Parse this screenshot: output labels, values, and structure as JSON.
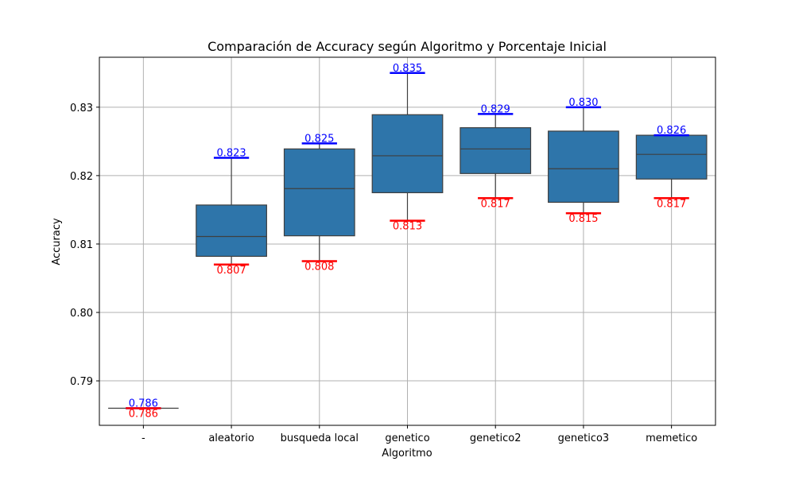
{
  "chart_data": {
    "type": "box",
    "title": "Comparación de Accuracy según Algoritmo y Porcentaje Inicial",
    "xlabel": "Algoritmo",
    "ylabel": "Accuracy",
    "ylim": [
      0.7835,
      0.8373
    ],
    "yticks": [
      0.79,
      0.8,
      0.81,
      0.82,
      0.83
    ],
    "ytick_labels": [
      "0.79",
      "0.80",
      "0.81",
      "0.82",
      "0.83"
    ],
    "grid": true,
    "box_color": "#2e75aa",
    "max_color": "#0000ff",
    "min_color": "#ff0000",
    "categories": [
      "-",
      "aleatorio",
      "busqueda local",
      "genetico",
      "genetico2",
      "genetico3",
      "memetico"
    ],
    "boxes": [
      {
        "whisker_low": 0.786,
        "q1": 0.786,
        "median": 0.786,
        "q3": 0.786,
        "whisker_high": 0.786,
        "min_label": "0.786",
        "max_label": "0.786"
      },
      {
        "whisker_low": 0.807,
        "q1": 0.8082,
        "median": 0.8111,
        "q3": 0.8157,
        "whisker_high": 0.8226,
        "min_label": "0.807",
        "max_label": "0.823"
      },
      {
        "whisker_low": 0.8075,
        "q1": 0.8112,
        "median": 0.8181,
        "q3": 0.8239,
        "whisker_high": 0.8247,
        "min_label": "0.808",
        "max_label": "0.825"
      },
      {
        "whisker_low": 0.8134,
        "q1": 0.8175,
        "median": 0.8229,
        "q3": 0.8289,
        "whisker_high": 0.835,
        "min_label": "0.813",
        "max_label": "0.835"
      },
      {
        "whisker_low": 0.8167,
        "q1": 0.8203,
        "median": 0.8239,
        "q3": 0.827,
        "whisker_high": 0.829,
        "min_label": "0.817",
        "max_label": "0.829"
      },
      {
        "whisker_low": 0.8145,
        "q1": 0.8161,
        "median": 0.821,
        "q3": 0.8265,
        "whisker_high": 0.83,
        "min_label": "0.815",
        "max_label": "0.830"
      },
      {
        "whisker_low": 0.8167,
        "q1": 0.8195,
        "median": 0.8231,
        "q3": 0.8259,
        "whisker_high": 0.8259,
        "min_label": "0.817",
        "max_label": "0.826"
      }
    ]
  }
}
